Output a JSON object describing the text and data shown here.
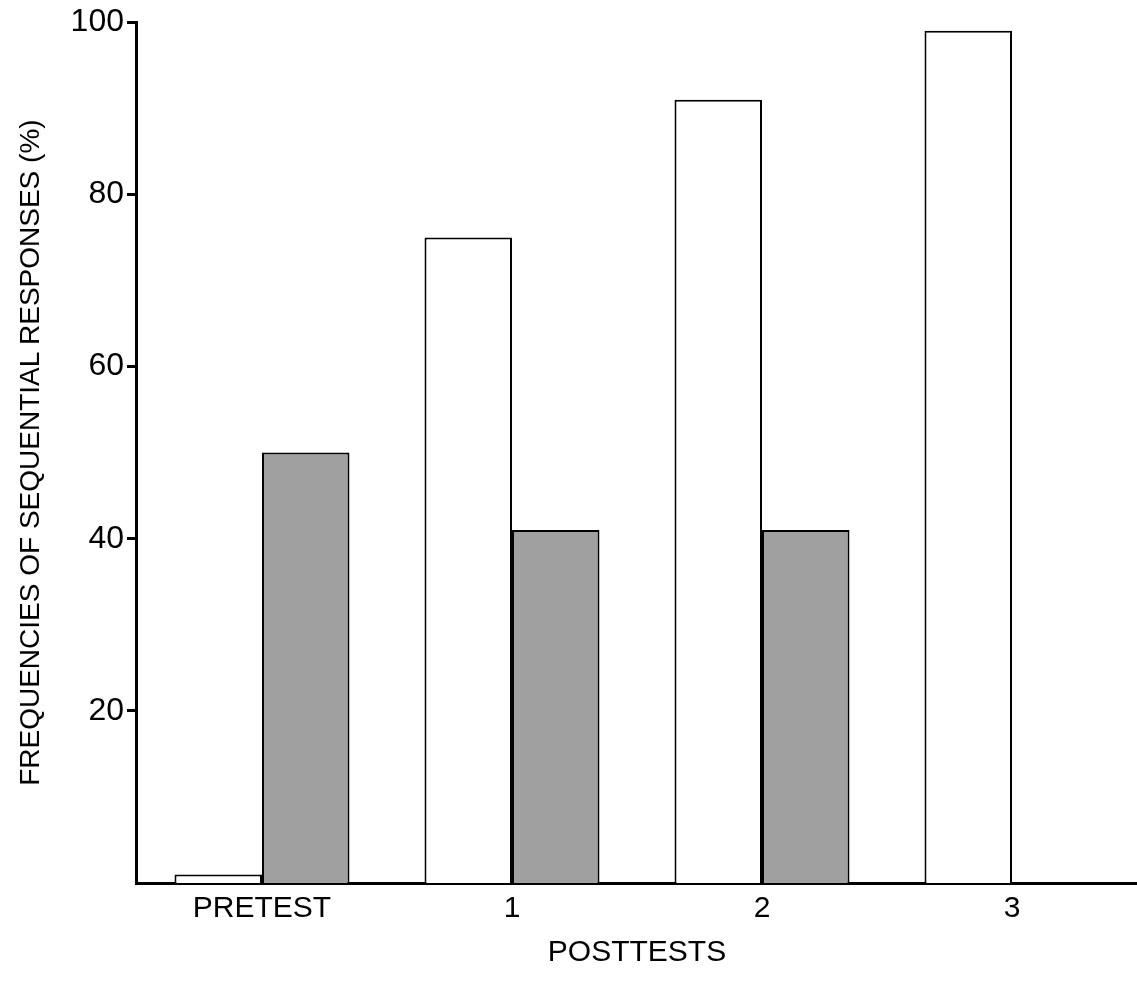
{
  "chart_data": {
    "type": "bar",
    "ylabel": "FREQUENCIES OF SEQUENTIAL RESPONSES (%)",
    "xlabel": "POSTTESTS",
    "categories": [
      "PRETEST",
      "1",
      "2",
      "3"
    ],
    "series": [
      {
        "color": "#ffffff",
        "values": [
          1,
          75,
          91,
          99
        ]
      },
      {
        "color": "#a0a0a0",
        "values": [
          50,
          41,
          41,
          null
        ]
      }
    ],
    "ylim": [
      0,
      100
    ],
    "yticks": [
      20,
      40,
      60,
      80,
      100
    ],
    "grid": false,
    "legend": false
  }
}
